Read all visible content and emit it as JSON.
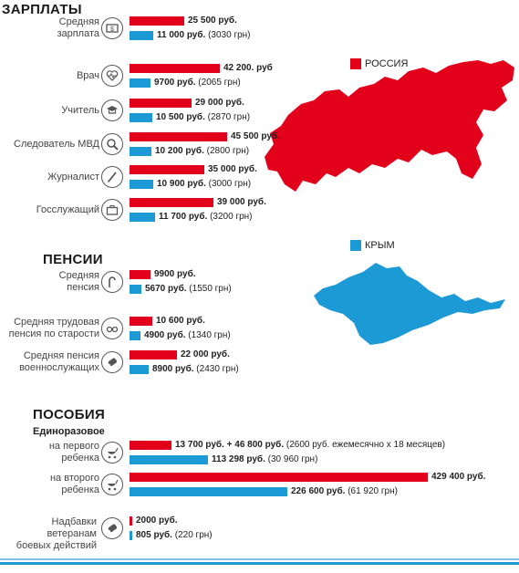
{
  "colors": {
    "russia": "#e3001b",
    "crimea": "#1c9ad6"
  },
  "legend": {
    "russia": "РОССИЯ",
    "crimea": "КРЫМ"
  },
  "sections": {
    "salaries": "ЗАРПЛАТЫ",
    "pensions": "ПЕНСИИ",
    "benefits": "ПОСОБИЯ",
    "one_time": "Единоразовое"
  },
  "chart_data": {
    "type": "bar",
    "series": [
      {
        "name": "РОССИЯ",
        "color": "#e3001b"
      },
      {
        "name": "КРЫМ",
        "color": "#1c9ad6"
      }
    ],
    "rows": [
      {
        "label": "Средняя\nзарплата",
        "icon": "money-icon",
        "ru": 25500,
        "cr": 11000,
        "ru_text": "25 500 руб.",
        "ru_extra": "",
        "cr_text": "11 000 руб.",
        "cr_extra": "(3030 грн)"
      },
      {
        "label": "Врач",
        "icon": "heart-pulse-icon",
        "ru": 42200,
        "cr": 9700,
        "ru_text": "42 200. руб",
        "ru_extra": "",
        "cr_text": "9700 руб.",
        "cr_extra": "(2065 грн)"
      },
      {
        "label": "Учитель",
        "icon": "graduation-cap-icon",
        "ru": 29000,
        "cr": 10500,
        "ru_text": "29 000 руб.",
        "ru_extra": "",
        "cr_text": "10 500 руб.",
        "cr_extra": "(2870 грн)"
      },
      {
        "label": "Следователь МВД",
        "icon": "magnifier-icon",
        "ru": 45500,
        "cr": 10200,
        "ru_text": "45 500 руб.",
        "ru_extra": "",
        "cr_text": "10 200 руб.",
        "cr_extra": "(2800 грн)"
      },
      {
        "label": "Журналист",
        "icon": "pen-icon",
        "ru": 35000,
        "cr": 10900,
        "ru_text": "35 000 руб.",
        "ru_extra": "",
        "cr_text": "10 900 руб.",
        "cr_extra": "(3000 грн)"
      },
      {
        "label": "Госслужащий",
        "icon": "briefcase-icon",
        "ru": 39000,
        "cr": 11700,
        "ru_text": "39 000 руб.",
        "ru_extra": "",
        "cr_text": "11 700 руб.",
        "cr_extra": "(3200 грн)"
      },
      {
        "label": "Средняя\nпенсия",
        "icon": "cane-icon",
        "ru": 9900,
        "cr": 5670,
        "ru_text": "9900 руб.",
        "ru_extra": "",
        "cr_text": "5670 руб.",
        "cr_extra": "(1550 грн)"
      },
      {
        "label": "Средняя трудовая\nпенсия по старости",
        "icon": "glasses-icon",
        "ru": 10600,
        "cr": 4900,
        "ru_text": "10 600 руб.",
        "ru_extra": "",
        "cr_text": "4900 руб.",
        "cr_extra": "(1340 грн)"
      },
      {
        "label": "Средняя пенсия\nвоеннослужащих",
        "icon": "dog-tag-icon",
        "ru": 22000,
        "cr": 8900,
        "ru_text": "22 000 руб.",
        "ru_extra": "",
        "cr_text": "8900 руб.",
        "cr_extra": "(2430 грн)"
      },
      {
        "label": "на первого\nребенка",
        "icon": "stroller-icon",
        "ru": 60500,
        "cr": 113298,
        "ru_text": "13 700 руб. + 46 800 руб.",
        "ru_extra": "(2600 руб. ежемесячно х 18 месяцев)",
        "cr_text": "113 298 руб.",
        "cr_extra": "(30 960 грн)"
      },
      {
        "label": "на второго\nребенка",
        "icon": "stroller-icon",
        "ru": 429400,
        "cr": 226600,
        "ru_text": "429 400 руб.",
        "ru_extra": "",
        "cr_text": "226 600 руб.",
        "cr_extra": "(61 920 грн)"
      },
      {
        "label": "Надбавки ветеранам\nбоевых действий",
        "icon": "dog-tag-icon",
        "ru": 2000,
        "cr": 805,
        "ru_text": "2000 руб.",
        "ru_extra": "",
        "cr_text": "805 руб.",
        "cr_extra": "(220 грн)"
      }
    ]
  }
}
